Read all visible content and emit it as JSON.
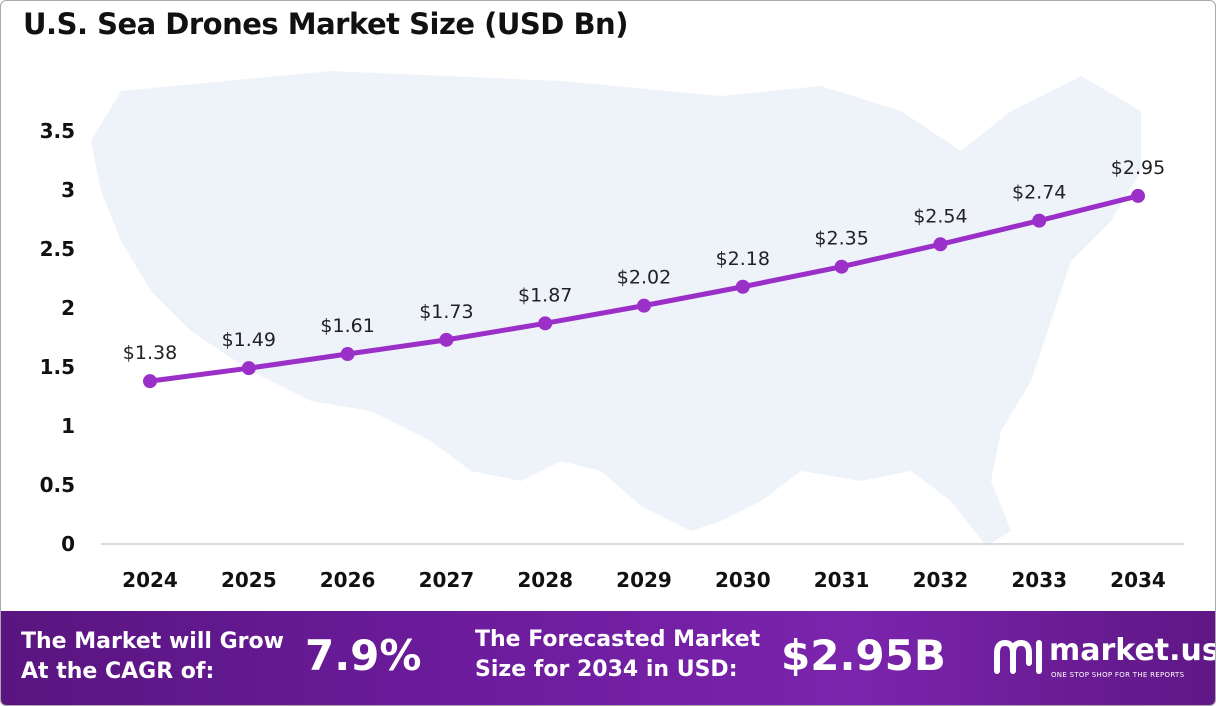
{
  "title": "U.S. Sea Drones Market Size (USD Bn)",
  "chart_data": {
    "type": "line",
    "title": "U.S. Sea Drones Market Size (USD Bn)",
    "categories": [
      "2024",
      "2025",
      "2026",
      "2027",
      "2028",
      "2029",
      "2030",
      "2031",
      "2032",
      "2033",
      "2034"
    ],
    "values": [
      1.38,
      1.49,
      1.61,
      1.73,
      1.87,
      2.02,
      2.18,
      2.35,
      2.54,
      2.74,
      2.95
    ],
    "data_labels": [
      "$1.38",
      "$1.49",
      "$1.61",
      "$1.73",
      "$1.87",
      "$2.02",
      "$2.18",
      "$2.35",
      "$2.54",
      "$2.74",
      "$2.95"
    ],
    "y_ticks": [
      "0",
      "0.5",
      "1",
      "1.5",
      "2",
      "2.5",
      "3",
      "3.5"
    ],
    "ylim": [
      0,
      3.5
    ],
    "grid": false,
    "line_color": "#9b30c8"
  },
  "footer": {
    "cagr_text_line1": "The Market will Grow",
    "cagr_text_line2": "At the CAGR of:",
    "cagr_value": "7.9%",
    "forecast_text_line1": "The Forecasted Market",
    "forecast_text_line2": "Size for 2034 in USD:",
    "forecast_value": "$2.95B",
    "brand_name": "market.us",
    "brand_tagline": "ONE STOP SHOP FOR THE REPORTS"
  },
  "colors": {
    "footer_start": "#5a1580",
    "footer_end": "#7b24ad",
    "line": "#9b30c8",
    "map_fill": "#eef2f9"
  }
}
